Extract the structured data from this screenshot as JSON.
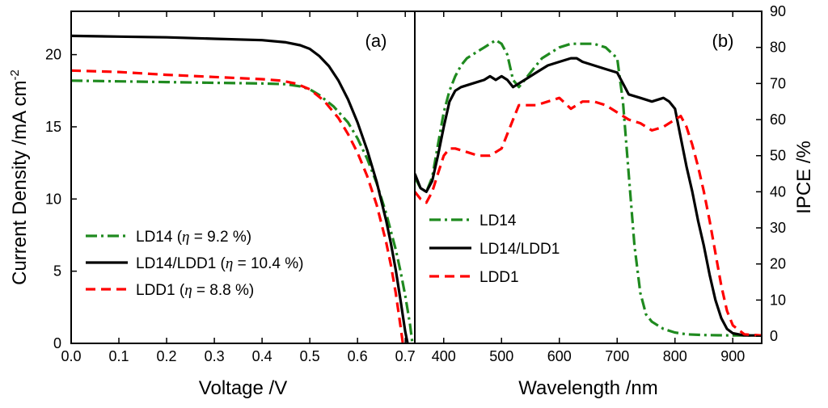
{
  "colors": {
    "LD14": "#1f8a1f",
    "LD14/LDD1": "#000000",
    "LDD1": "#ff0000"
  },
  "chart_data": [
    {
      "type": "line",
      "panel": "(a)",
      "xlabel": "Voltage /V",
      "ylabel": "Current Density /mA cm",
      "ylabel_sup": "-2",
      "xlim": [
        0.0,
        0.72
      ],
      "ylim": [
        0,
        23
      ],
      "xticks": [
        "0.0",
        "0.1",
        "0.2",
        "0.3",
        "0.4",
        "0.5",
        "0.6",
        "0.7"
      ],
      "yticks": [
        "0",
        "5",
        "10",
        "15",
        "20"
      ],
      "legend_position": "lower-left",
      "series": [
        {
          "name": "LD14",
          "eta": "9.2",
          "style": "dashdot",
          "color_key": "LD14",
          "x": [
            0.0,
            0.1,
            0.2,
            0.3,
            0.4,
            0.45,
            0.48,
            0.5,
            0.52,
            0.55,
            0.58,
            0.6,
            0.62,
            0.64,
            0.66,
            0.68,
            0.69,
            0.7,
            0.71,
            0.715
          ],
          "y": [
            18.2,
            18.15,
            18.1,
            18.05,
            18.0,
            17.95,
            17.8,
            17.6,
            17.2,
            16.4,
            15.3,
            14.2,
            12.8,
            11.1,
            9.0,
            6.5,
            5.0,
            3.3,
            1.3,
            0
          ]
        },
        {
          "name": "LD14/LDD1",
          "eta": "10.4",
          "style": "solid",
          "color_key": "LD14/LDD1",
          "x": [
            0.0,
            0.1,
            0.2,
            0.3,
            0.4,
            0.45,
            0.48,
            0.5,
            0.52,
            0.54,
            0.56,
            0.58,
            0.6,
            0.62,
            0.64,
            0.66,
            0.67,
            0.68,
            0.69,
            0.7,
            0.705
          ],
          "y": [
            21.3,
            21.25,
            21.2,
            21.1,
            21.0,
            20.85,
            20.65,
            20.4,
            19.9,
            19.2,
            18.2,
            16.9,
            15.3,
            13.4,
            11.2,
            8.5,
            6.9,
            5.1,
            3.0,
            0.8,
            0
          ]
        },
        {
          "name": "LDD1",
          "eta": "8.8",
          "style": "dashed",
          "color_key": "LDD1",
          "x": [
            0.0,
            0.1,
            0.2,
            0.3,
            0.4,
            0.44,
            0.47,
            0.5,
            0.53,
            0.56,
            0.58,
            0.6,
            0.62,
            0.64,
            0.66,
            0.67,
            0.68,
            0.69,
            0.695
          ],
          "y": [
            18.9,
            18.8,
            18.6,
            18.45,
            18.3,
            18.2,
            18.0,
            17.6,
            16.8,
            15.6,
            14.5,
            13.2,
            11.6,
            9.6,
            7.0,
            5.4,
            3.5,
            1.2,
            0
          ]
        }
      ]
    },
    {
      "type": "line",
      "panel": "(b)",
      "xlabel": "Wavelength /nm",
      "ylabel": "IPCE /%",
      "xlim": [
        350,
        950
      ],
      "ylim": [
        -2,
        90
      ],
      "xticks": [
        "400",
        "500",
        "600",
        "700",
        "800",
        "900"
      ],
      "yticks": [
        "0",
        "10",
        "20",
        "30",
        "40",
        "50",
        "60",
        "70",
        "80",
        "90"
      ],
      "legend_position": "lower-left",
      "series": [
        {
          "name": "LD14",
          "style": "dashdot",
          "color_key": "LD14",
          "x": [
            350,
            360,
            370,
            380,
            390,
            400,
            410,
            420,
            430,
            440,
            450,
            460,
            470,
            480,
            490,
            500,
            510,
            520,
            530,
            540,
            550,
            560,
            570,
            580,
            590,
            600,
            620,
            640,
            660,
            680,
            700,
            710,
            720,
            730,
            740,
            750,
            760,
            770,
            780,
            800,
            820,
            850,
            900,
            950
          ],
          "y": [
            44,
            41,
            40,
            44,
            53,
            62,
            68,
            72,
            75,
            77,
            78,
            79,
            80,
            81,
            82,
            81,
            78,
            71,
            69,
            71,
            73,
            75,
            77,
            78,
            79,
            80,
            81,
            81,
            81,
            80,
            77,
            65,
            45,
            25,
            12,
            6,
            4,
            3,
            2,
            1,
            0.5,
            0.3,
            0.2,
            0.2
          ]
        },
        {
          "name": "LD14/LDD1",
          "style": "solid",
          "color_key": "LD14/LDD1",
          "x": [
            350,
            360,
            370,
            380,
            390,
            400,
            410,
            420,
            430,
            450,
            470,
            480,
            490,
            500,
            510,
            520,
            530,
            540,
            550,
            560,
            580,
            600,
            620,
            630,
            640,
            660,
            680,
            700,
            710,
            720,
            740,
            760,
            780,
            790,
            800,
            810,
            820,
            830,
            840,
            850,
            860,
            870,
            880,
            890,
            900,
            920,
            950
          ],
          "y": [
            45,
            41,
            40,
            43,
            50,
            58,
            65,
            68,
            69,
            70,
            71,
            72,
            71,
            72,
            71,
            69,
            70,
            71,
            72,
            73,
            75,
            76,
            77,
            77,
            76,
            75,
            74,
            73,
            70,
            67,
            66,
            65,
            66,
            65,
            63,
            55,
            47,
            40,
            32,
            25,
            17,
            10,
            5,
            2,
            0.8,
            0.2,
            0.2
          ]
        },
        {
          "name": "LDD1",
          "style": "dashed",
          "color_key": "LDD1",
          "x": [
            350,
            360,
            370,
            380,
            390,
            400,
            410,
            420,
            440,
            460,
            480,
            500,
            510,
            520,
            530,
            540,
            560,
            580,
            600,
            620,
            640,
            660,
            680,
            700,
            720,
            740,
            760,
            780,
            800,
            810,
            820,
            830,
            840,
            850,
            860,
            870,
            880,
            890,
            900,
            920,
            950
          ],
          "y": [
            40,
            38,
            37,
            40,
            45,
            50,
            52,
            52,
            51,
            50,
            50,
            52,
            56,
            60,
            64,
            64,
            64,
            65,
            66,
            63,
            65,
            65,
            64,
            62,
            60,
            59,
            57,
            58,
            60,
            61,
            58,
            53,
            47,
            40,
            32,
            23,
            14,
            7,
            3,
            0.5,
            0.2
          ]
        }
      ]
    }
  ]
}
